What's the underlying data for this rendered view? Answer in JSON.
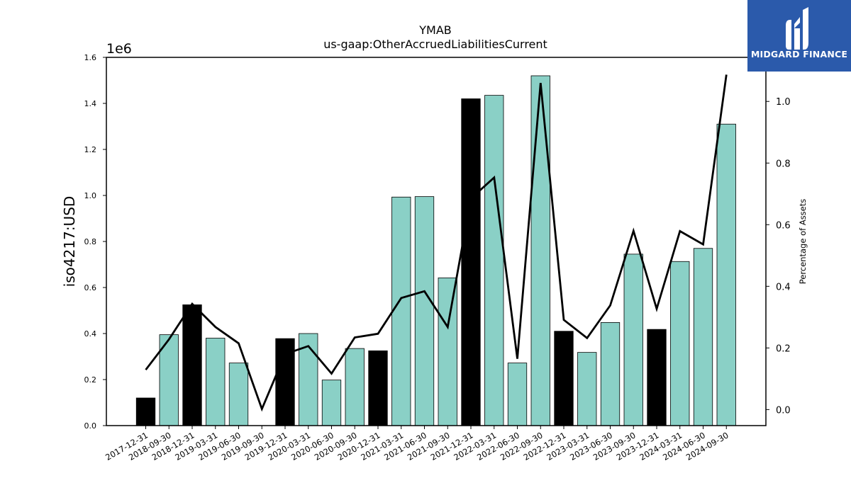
{
  "chart_data": {
    "type": "bar",
    "title": "YMAB",
    "subtitle": "us-gaap:OtherAccruedLiabilitiesCurrent",
    "ylabel": "iso4217:USD",
    "y2label": "Percentage of Assets",
    "offset_label": "1e6",
    "categories": [
      "2017-12-31",
      "2018-09-30",
      "2018-12-31",
      "2019-03-31",
      "2019-06-30",
      "2019-09-30",
      "2019-12-31",
      "2020-03-31",
      "2020-06-30",
      "2020-09-30",
      "2020-12-31",
      "2021-03-31",
      "2021-06-30",
      "2021-09-30",
      "2021-12-31",
      "2022-03-31",
      "2022-06-30",
      "2022-09-30",
      "2022-12-31",
      "2023-03-31",
      "2023-06-30",
      "2023-09-30",
      "2023-12-31",
      "2024-03-31",
      "2024-06-30",
      "2024-09-30"
    ],
    "values": [
      0.12,
      0.395,
      0.525,
      0.38,
      0.272,
      0.0,
      0.378,
      0.4,
      0.198,
      0.335,
      0.325,
      0.993,
      0.995,
      0.642,
      1.42,
      1.435,
      0.272,
      1.52,
      0.41,
      0.318,
      0.448,
      0.745,
      0.418,
      0.713,
      0.77,
      1.31
    ],
    "bar_colors": [
      "#000000",
      "#8ad0c6",
      "#000000",
      "#8ad0c6",
      "#8ad0c6",
      "#8ad0c6",
      "#000000",
      "#8ad0c6",
      "#8ad0c6",
      "#8ad0c6",
      "#000000",
      "#8ad0c6",
      "#8ad0c6",
      "#8ad0c6",
      "#000000",
      "#8ad0c6",
      "#8ad0c6",
      "#8ad0c6",
      "#000000",
      "#8ad0c6",
      "#8ad0c6",
      "#8ad0c6",
      "#000000",
      "#8ad0c6",
      "#8ad0c6",
      "#8ad0c6"
    ],
    "pct_of_assets": [
      0.129,
      0.228,
      0.343,
      0.268,
      0.215,
      0.002,
      0.18,
      0.206,
      0.117,
      0.234,
      0.246,
      0.362,
      0.384,
      0.268,
      0.685,
      0.753,
      0.165,
      1.06,
      0.291,
      0.232,
      0.338,
      0.58,
      0.327,
      0.579,
      0.536,
      1.087
    ],
    "ylim": [
      0,
      1.6
    ],
    "yticks": [
      "0.0",
      "0.2",
      "0.4",
      "0.6",
      "0.8",
      "1.0",
      "1.2",
      "1.4",
      "1.6"
    ],
    "y2lim": [
      -0.052,
      1.143
    ],
    "y2ticks": [
      "0.0",
      "0.2",
      "0.4",
      "0.6",
      "0.8",
      "1.0"
    ],
    "colors": {
      "accent_bar": "#8ad0c6",
      "year_end_bar": "#000000",
      "line": "#000000"
    }
  },
  "logo": {
    "text": "MIDGARD FINANCE",
    "background": "#2b5aab"
  }
}
